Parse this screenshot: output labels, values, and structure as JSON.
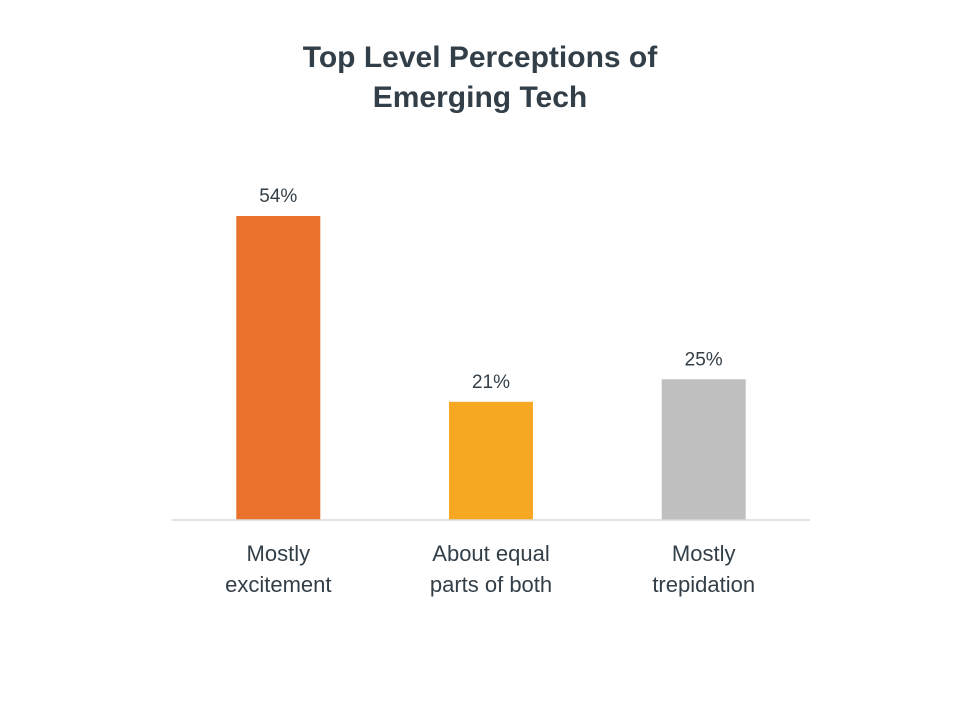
{
  "chart_data": {
    "type": "bar",
    "title": [
      "Top Level Perceptions of",
      "Emerging Tech"
    ],
    "categories": [
      [
        "Mostly",
        "excitement"
      ],
      [
        "About equal",
        "parts of both"
      ],
      [
        "Mostly",
        "trepidation"
      ]
    ],
    "values": [
      54,
      21,
      25
    ],
    "data_labels": [
      "54%",
      "21%",
      "25%"
    ],
    "colors": [
      "#eb722c",
      "#f7a823",
      "#bfbfbf"
    ],
    "ylim": [
      0,
      60
    ],
    "grid": false,
    "legend": "none",
    "xlabel": "",
    "ylabel": ""
  }
}
